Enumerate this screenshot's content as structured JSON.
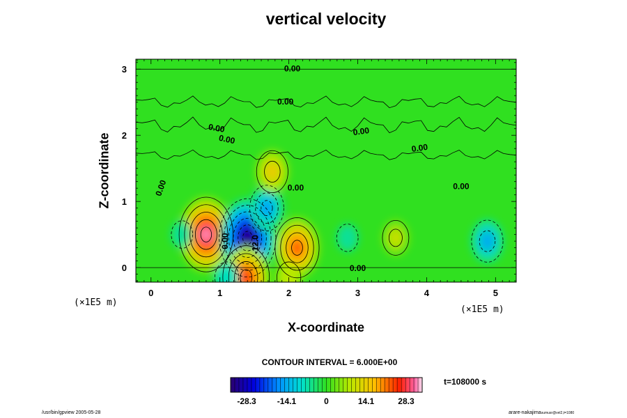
{
  "chart_data": {
    "type": "heatmap",
    "title": "vertical velocity",
    "xlabel": "X-coordinate",
    "ylabel": "Z-coordinate",
    "x_unit": "(×1E5 m)",
    "y_unit": "(×1E5 m)",
    "xlim": [
      -0.22,
      5.3
    ],
    "ylim": [
      -0.22,
      3.15
    ],
    "x_ticks": [
      0,
      1,
      2,
      3,
      4,
      5
    ],
    "x_tick_labels": [
      "0",
      "1",
      "2",
      "3",
      "4",
      "5"
    ],
    "y_ticks": [
      0,
      1,
      2,
      3
    ],
    "y_tick_labels": [
      "0",
      "1",
      "2",
      "3"
    ],
    "contour_interval_text": "CONTOUR INTERVAL = 6.000E+00",
    "time_text": "t=108000 s",
    "colorbar": {
      "min": -34.0,
      "max": 34.0,
      "tick_values": [
        -28.3,
        -14.1,
        0,
        14.1,
        28.3
      ],
      "tick_labels": [
        "-28.3",
        "-14.1",
        "0",
        "14.1",
        "28.3"
      ]
    },
    "cells": [
      {
        "x": 0.8,
        "z": 0.5,
        "value": 32
      },
      {
        "x": 1.4,
        "z": 0.45,
        "value": -34
      },
      {
        "x": 1.68,
        "z": 0.9,
        "value": -16
      },
      {
        "x": 2.12,
        "z": 0.3,
        "value": 24
      },
      {
        "x": 1.76,
        "z": 1.45,
        "value": 14
      },
      {
        "x": 3.55,
        "z": 0.45,
        "value": 10
      },
      {
        "x": 4.88,
        "z": 0.4,
        "value": -14
      },
      {
        "x": 0.45,
        "z": 0.5,
        "value": -6
      },
      {
        "x": 2.85,
        "z": 0.45,
        "value": -6
      },
      {
        "x": 1.38,
        "z": -0.15,
        "value": 26
      },
      {
        "x": 2.0,
        "z": -0.15,
        "value": 8
      },
      {
        "x": 1.1,
        "z": -0.15,
        "value": -8
      }
    ],
    "contour_labels": [
      {
        "x": 2.05,
        "z": 3.0,
        "text": "0.00",
        "rotate": 0
      },
      {
        "x": 1.95,
        "z": 2.5,
        "text": "0.00",
        "rotate": 0
      },
      {
        "x": 0.95,
        "z": 2.1,
        "text": "0.00",
        "rotate": 10
      },
      {
        "x": 1.1,
        "z": 1.93,
        "text": "0.00",
        "rotate": 12
      },
      {
        "x": 3.05,
        "z": 2.05,
        "text": "0.00",
        "rotate": -8
      },
      {
        "x": 3.9,
        "z": 1.8,
        "text": "0.00",
        "rotate": -8
      },
      {
        "x": 0.15,
        "z": 1.2,
        "text": "0.00",
        "rotate": -70
      },
      {
        "x": 2.1,
        "z": 1.2,
        "text": "0.00",
        "rotate": 0
      },
      {
        "x": 4.5,
        "z": 1.22,
        "text": "0.00",
        "rotate": 0
      },
      {
        "x": 1.08,
        "z": 0.4,
        "text": "0.00",
        "rotate": -90
      },
      {
        "x": 1.52,
        "z": 0.35,
        "text": "-12.0",
        "rotate": -90
      },
      {
        "x": 3.0,
        "z": -0.02,
        "text": "0.00",
        "rotate": 0
      }
    ],
    "zero_levels": [
      0,
      3.0
    ]
  },
  "footer_left": "/usr/bin/gpview 2005-05-28",
  "footer_right_main": "arare-nakajima",
  "footer_right_sub": "sumusr@vel2,t=1080"
}
